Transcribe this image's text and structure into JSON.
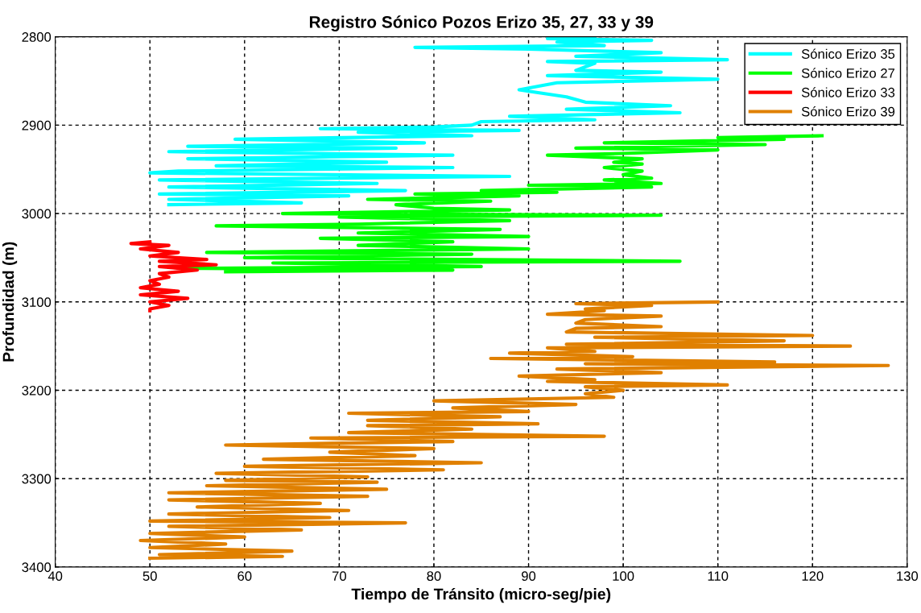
{
  "chart_data": {
    "type": "line",
    "title": "Registro Sónico Pozos Erizo 35, 27, 33 y 39",
    "xlabel": "Tiempo de Tránsito (micro-seg/pie)",
    "ylabel": "Profundidad (m)",
    "xlim": [
      40,
      130
    ],
    "xticks": [
      40,
      50,
      60,
      70,
      80,
      90,
      100,
      110,
      120,
      130
    ],
    "ylim": [
      3400,
      2800
    ],
    "yticks": [
      2800,
      2900,
      3000,
      3100,
      3200,
      3300,
      3400
    ],
    "grid": true,
    "legend": "top right",
    "line_style": "solid",
    "marker": "none",
    "series": [
      {
        "name": "Sónico Erizo 35",
        "color": "#00ffff",
        "x": [
          97,
          92,
          103,
          93,
          98,
          78,
          90,
          104,
          95,
          111,
          92,
          97,
          95,
          104,
          92,
          110,
          93,
          89,
          94,
          96,
          105,
          94,
          106,
          88,
          97,
          85,
          84,
          80,
          68,
          89,
          72,
          84,
          59,
          79,
          54,
          76,
          52,
          82,
          54,
          75,
          57,
          82,
          53,
          50,
          88,
          51,
          74,
          52,
          77,
          51,
          71,
          52,
          66,
          52
        ],
        "values": [
          2800,
          2802,
          2804,
          2806,
          2810,
          2812,
          2814,
          2818,
          2822,
          2826,
          2828,
          2830,
          2838,
          2840,
          2844,
          2848,
          2852,
          2860,
          2868,
          2874,
          2878,
          2882,
          2886,
          2890,
          2894,
          2896,
          2900,
          2902,
          2904,
          2906,
          2908,
          2912,
          2916,
          2920,
          2924,
          2926,
          2930,
          2934,
          2938,
          2942,
          2946,
          2948,
          2952,
          2954,
          2958,
          2962,
          2966,
          2970,
          2974,
          2978,
          2980,
          2984,
          2988,
          2990
        ]
      },
      {
        "name": "Sónico Erizo 27",
        "color": "#00ff00",
        "x": [
          121,
          110,
          117,
          98,
          115,
          95,
          110,
          100,
          92,
          102,
          99,
          102,
          98,
          102,
          100,
          103,
          98,
          104,
          90,
          103,
          85,
          93,
          78,
          89,
          73,
          86,
          76,
          80,
          88,
          64,
          104,
          70,
          88,
          72,
          57,
          87,
          72,
          90,
          68,
          82,
          72,
          90,
          56,
          84,
          60,
          106,
          63,
          85,
          54,
          82,
          58
        ],
        "values": [
          2912,
          2914,
          2916,
          2920,
          2922,
          2926,
          2928,
          2932,
          2934,
          2938,
          2942,
          2944,
          2948,
          2952,
          2956,
          2960,
          2962,
          2966,
          2968,
          2970,
          2974,
          2976,
          2978,
          2980,
          2984,
          2986,
          2990,
          2994,
          2996,
          3000,
          3002,
          3004,
          3008,
          3012,
          3014,
          3018,
          3022,
          3026,
          3028,
          3032,
          3036,
          3040,
          3044,
          3046,
          3050,
          3054,
          3056,
          3060,
          3062,
          3064,
          3066
        ]
      },
      {
        "name": "Sónico Erizo 33",
        "color": "#ff0000",
        "x": [
          50,
          48,
          52,
          49,
          53,
          50,
          56,
          51,
          57,
          51,
          55,
          51,
          52,
          50,
          51,
          49,
          53,
          49,
          54,
          50,
          52,
          50,
          50
        ],
        "values": [
          3032,
          3034,
          3036,
          3040,
          3044,
          3048,
          3052,
          3054,
          3058,
          3060,
          3064,
          3068,
          3072,
          3076,
          3080,
          3084,
          3088,
          3092,
          3096,
          3100,
          3104,
          3108,
          3110
        ]
      },
      {
        "name": "Sónico Erizo 39",
        "color": "#e08000",
        "x": [
          110,
          95,
          103,
          96,
          98,
          92,
          104,
          96,
          95,
          104,
          95,
          94,
          120,
          97,
          117,
          94,
          124,
          92,
          97,
          88,
          101,
          86,
          116,
          96,
          128,
          93,
          104,
          89,
          97,
          92,
          111,
          96,
          100,
          96,
          99,
          80,
          95,
          82,
          90,
          71,
          87,
          73,
          91,
          73,
          84,
          71,
          98,
          67,
          82,
          69,
          58,
          80,
          69,
          78,
          62,
          85,
          60,
          81,
          57,
          73,
          58,
          74,
          56,
          75,
          52,
          73,
          52,
          68,
          55,
          71,
          52,
          69,
          50,
          77,
          52,
          66,
          50,
          60,
          49,
          58,
          50,
          65,
          51,
          64,
          50
        ],
        "values": [
          3100,
          3102,
          3104,
          3108,
          3110,
          3114,
          3116,
          3120,
          3124,
          3128,
          3130,
          3134,
          3138,
          3140,
          3144,
          3148,
          3150,
          3152,
          3156,
          3158,
          3162,
          3164,
          3168,
          3170,
          3172,
          3176,
          3180,
          3184,
          3188,
          3190,
          3194,
          3196,
          3200,
          3204,
          3208,
          3212,
          3216,
          3220,
          3224,
          3226,
          3230,
          3234,
          3238,
          3240,
          3244,
          3248,
          3252,
          3254,
          3258,
          3260,
          3262,
          3266,
          3270,
          3274,
          3278,
          3282,
          3286,
          3290,
          3294,
          3298,
          3302,
          3304,
          3308,
          3312,
          3316,
          3320,
          3324,
          3328,
          3332,
          3336,
          3340,
          3344,
          3348,
          3350,
          3354,
          3358,
          3362,
          3366,
          3370,
          3374,
          3378,
          3382,
          3386,
          3388,
          3390
        ]
      }
    ]
  }
}
